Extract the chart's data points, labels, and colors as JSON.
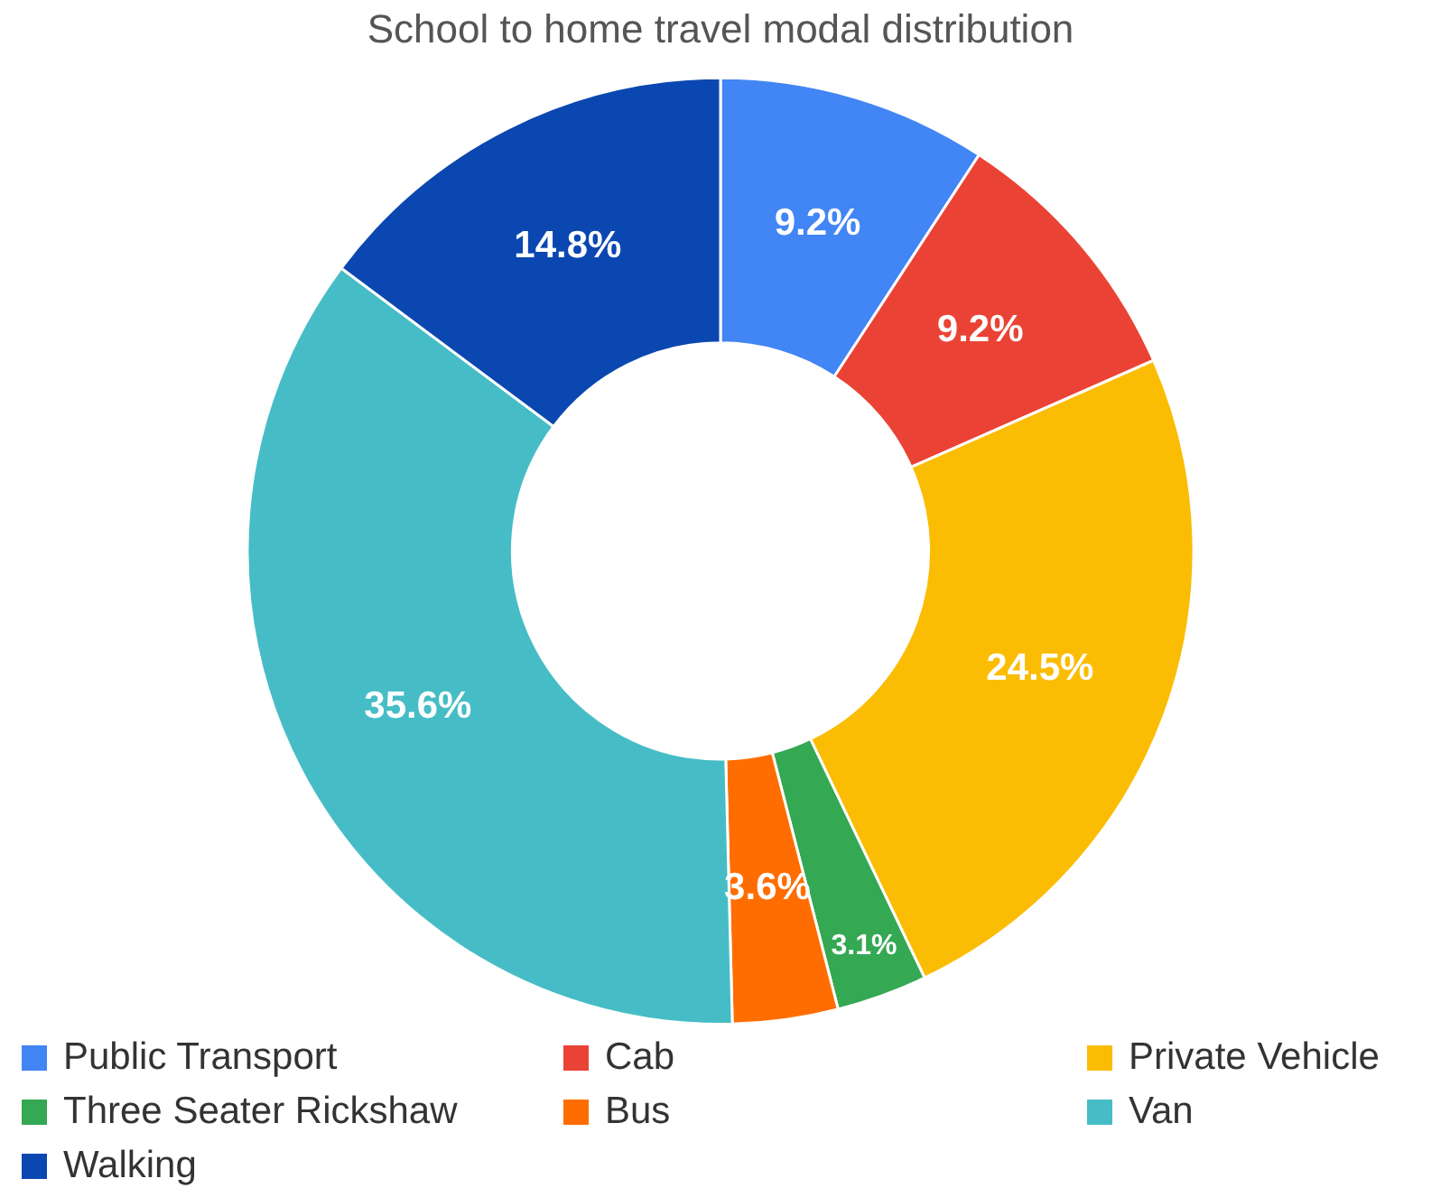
{
  "chart_data": {
    "type": "donut",
    "title": "School to home travel modal distribution",
    "categories": [
      "Public Transport",
      "Cab",
      "Private Vehicle",
      "Three Seater Rickshaw",
      "Bus",
      "Van",
      "Walking"
    ],
    "values": [
      9.2,
      9.2,
      24.5,
      3.1,
      3.6,
      35.6,
      14.8
    ],
    "colors": [
      "#4285f4",
      "#ea4335",
      "#fbbc04",
      "#34a853",
      "#ff6d01",
      "#46bdc6",
      "#0b47b0"
    ],
    "value_labels": [
      "9.2%",
      "9.2%",
      "24.5%",
      "3.1%",
      "3.6%",
      "35.6%",
      "14.8%"
    ],
    "legend": "bottom"
  }
}
